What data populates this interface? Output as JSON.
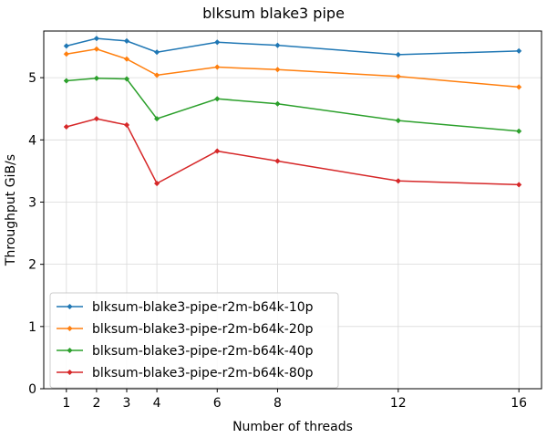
{
  "chart_data": {
    "type": "line",
    "title": "blksum blake3 pipe",
    "xlabel": "Number of threads",
    "ylabel": "Throughput GiB/s",
    "x": [
      1,
      2,
      3,
      4,
      6,
      8,
      12,
      16
    ],
    "xticks": [
      1,
      2,
      3,
      4,
      6,
      8,
      12,
      16
    ],
    "yticks": [
      0,
      1,
      2,
      3,
      4,
      5
    ],
    "xlim": [
      0.25,
      16.75
    ],
    "ylim": [
      0,
      5.75
    ],
    "grid": true,
    "legend_position": "lower-left",
    "series": [
      {
        "name": "blksum-blake3-pipe-r2m-b64k-10p",
        "color": "#1f77b4",
        "values": [
          5.51,
          5.63,
          5.59,
          5.41,
          5.57,
          5.52,
          5.37,
          5.43
        ]
      },
      {
        "name": "blksum-blake3-pipe-r2m-b64k-20p",
        "color": "#ff7f0e",
        "values": [
          5.38,
          5.46,
          5.3,
          5.04,
          5.17,
          5.13,
          5.02,
          4.85
        ]
      },
      {
        "name": "blksum-blake3-pipe-r2m-b64k-40p",
        "color": "#2ca02c",
        "values": [
          4.95,
          4.99,
          4.98,
          4.34,
          4.66,
          4.58,
          4.31,
          4.14
        ]
      },
      {
        "name": "blksum-blake3-pipe-r2m-b64k-80p",
        "color": "#d62728",
        "values": [
          4.21,
          4.34,
          4.24,
          3.3,
          3.82,
          3.66,
          3.34,
          3.28
        ]
      }
    ]
  }
}
